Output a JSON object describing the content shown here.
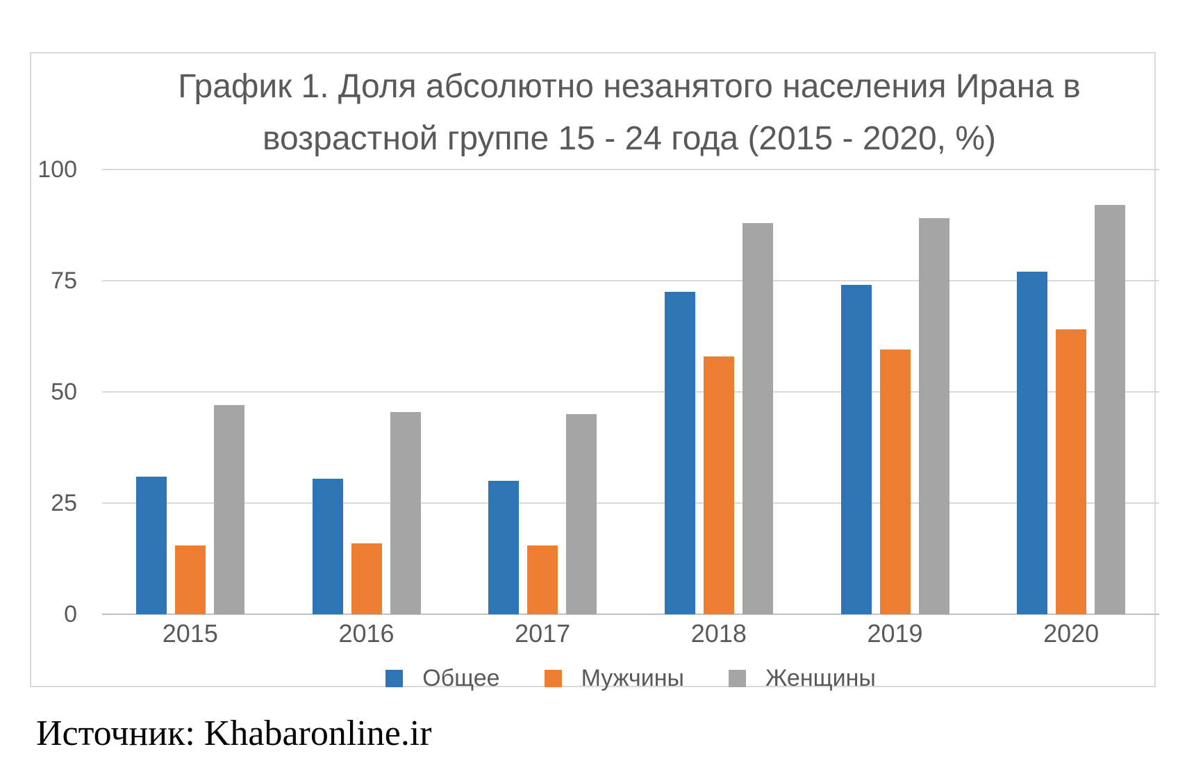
{
  "chart_data": {
    "type": "bar",
    "title": "График 1. Доля абсолютно незанятого населения Ирана в возрастной группе 15 - 24 года (2015 - 2020, %)",
    "title_lines": [
      "График 1. Доля абсолютно незанятого населения Ирана в",
      "возрастной группе 15 - 24 года (2015 - 2020, %)"
    ],
    "categories": [
      "2015",
      "2016",
      "2017",
      "2018",
      "2019",
      "2020"
    ],
    "series": [
      {
        "name": "Общее",
        "color": "#2e75b6",
        "values": [
          31,
          30.5,
          30,
          72.5,
          74,
          77
        ]
      },
      {
        "name": "Мужчины",
        "color": "#ed7d31",
        "values": [
          15.5,
          16,
          15.5,
          58,
          59.5,
          64
        ]
      },
      {
        "name": "Женщины",
        "color": "#a5a5a5",
        "values": [
          47,
          45.5,
          45,
          88,
          89,
          92
        ]
      }
    ],
    "ylim": [
      0,
      100
    ],
    "yticks": [
      0,
      25,
      50,
      75,
      100
    ],
    "grid": true,
    "legend_position": "bottom"
  },
  "source": {
    "label": "Источник: Khabaronline.ir"
  }
}
